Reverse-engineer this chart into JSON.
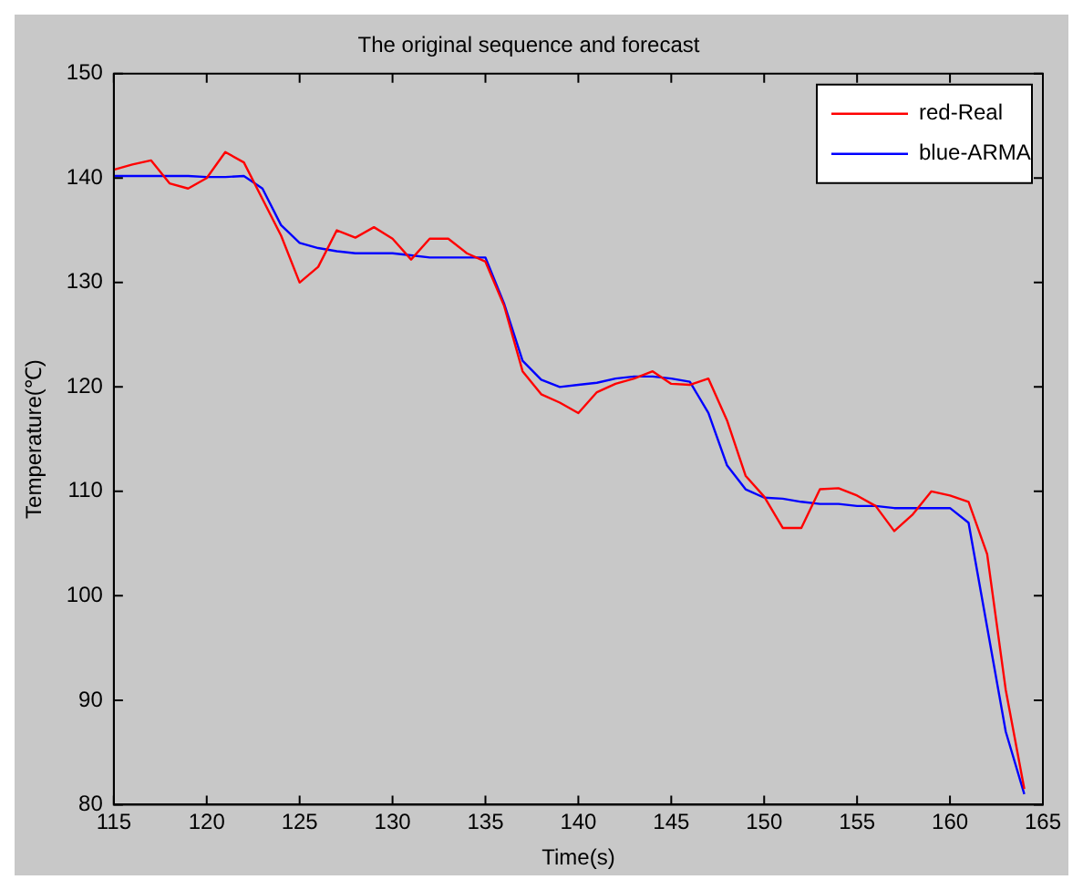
{
  "chart_data": {
    "type": "line",
    "title": "The original sequence and forecast",
    "xlabel": "Time(s)",
    "ylabel": "Temperature(℃)",
    "x": [
      115,
      116,
      117,
      118,
      119,
      120,
      121,
      122,
      123,
      124,
      125,
      126,
      127,
      128,
      129,
      130,
      131,
      132,
      133,
      134,
      135,
      136,
      137,
      138,
      139,
      140,
      141,
      142,
      143,
      144,
      145,
      146,
      147,
      148,
      149,
      150,
      151,
      152,
      153,
      154,
      155,
      156,
      157,
      158,
      159,
      160,
      161,
      162,
      163,
      164
    ],
    "series": [
      {
        "name": "red-Real",
        "color": "#ff0000",
        "values": [
          140.8,
          141.3,
          141.7,
          139.5,
          139,
          140,
          142.5,
          141.5,
          138,
          134.5,
          130,
          131.5,
          135,
          134.3,
          135.3,
          134.2,
          132.2,
          134.2,
          134.2,
          132.8,
          132,
          127.8,
          121.5,
          119.3,
          118.5,
          117.5,
          119.5,
          120.3,
          120.8,
          121.5,
          120.3,
          120.2,
          120.8,
          116.8,
          111.5,
          109.5,
          106.5,
          106.5,
          110.2,
          110.3,
          109.6,
          108.6,
          106.2,
          107.8,
          110,
          109.6,
          109,
          104,
          91,
          81.5
        ]
      },
      {
        "name": "blue-ARMA",
        "color": "#0000ff",
        "values": [
          140.2,
          140.2,
          140.2,
          140.2,
          140.2,
          140.1,
          140.1,
          140.2,
          139,
          135.5,
          133.8,
          133.3,
          133,
          132.8,
          132.8,
          132.8,
          132.6,
          132.4,
          132.4,
          132.4,
          132.4,
          128,
          122.5,
          120.7,
          120,
          120.2,
          120.4,
          120.8,
          121,
          121,
          120.8,
          120.5,
          117.5,
          112.5,
          110.2,
          109.4,
          109.3,
          109,
          108.8,
          108.8,
          108.6,
          108.6,
          108.4,
          108.4,
          108.4,
          108.4,
          107,
          97,
          87,
          81
        ]
      }
    ],
    "xlim": [
      115,
      165
    ],
    "xticks": [
      115,
      120,
      125,
      130,
      135,
      140,
      145,
      150,
      155,
      160,
      165
    ],
    "ylim": [
      80,
      150
    ],
    "yticks": [
      80,
      90,
      100,
      110,
      120,
      130,
      140,
      150
    ],
    "legend": "top right",
    "grid": false,
    "marker": "none",
    "line_style": "solid"
  }
}
